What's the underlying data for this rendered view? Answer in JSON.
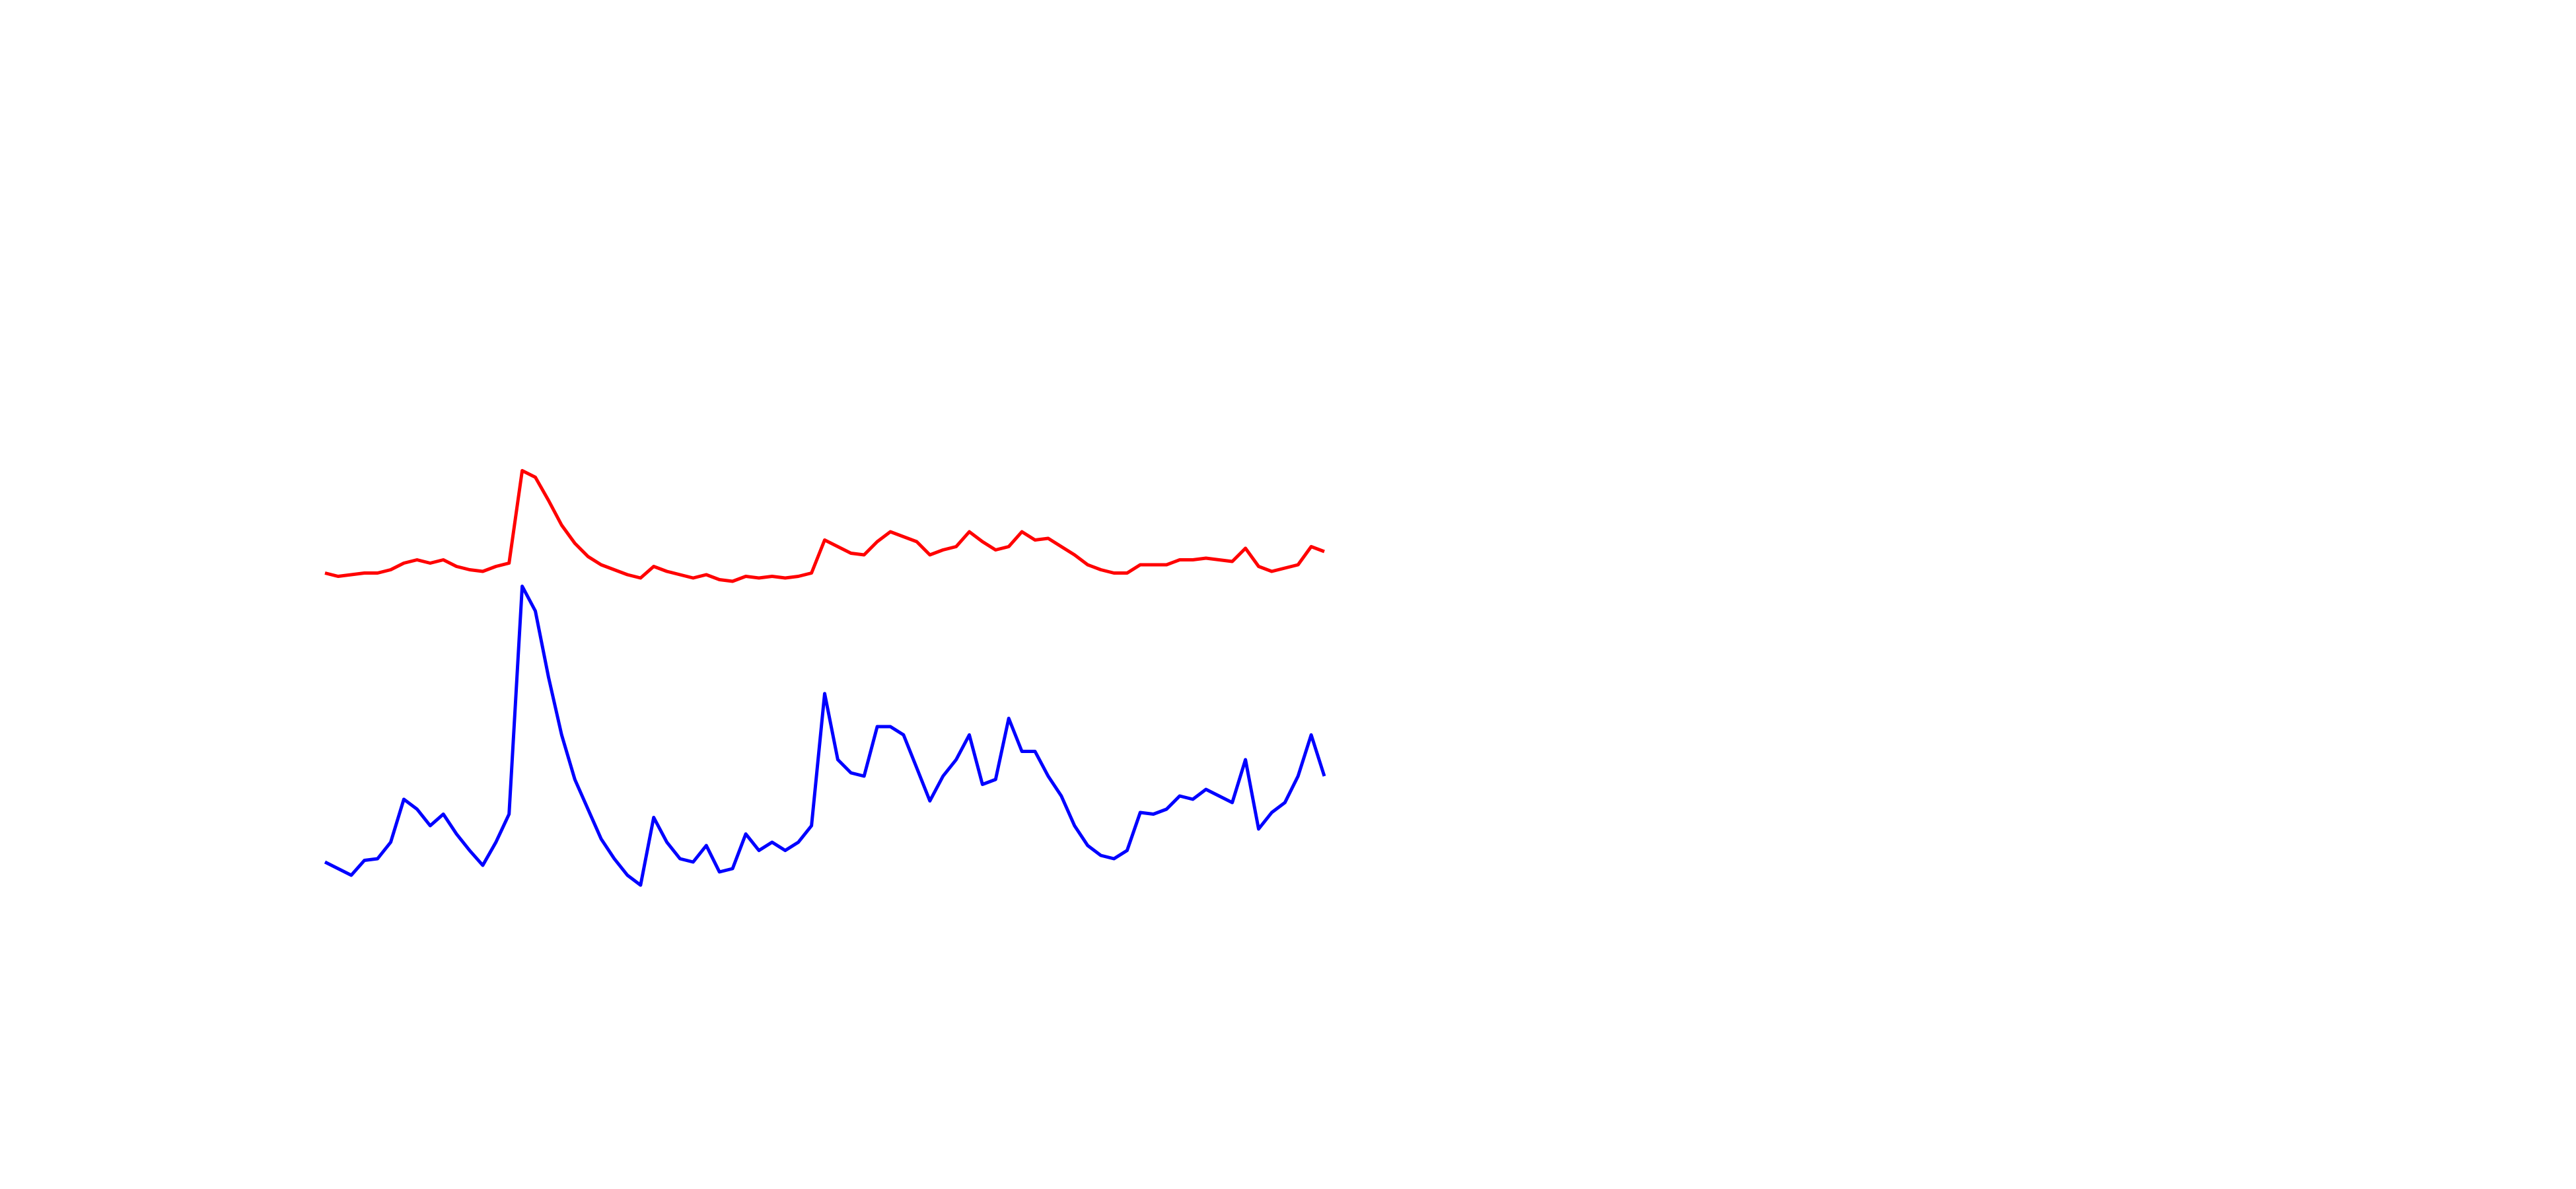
{
  "chart_data": {
    "type": "line",
    "ylim": [
      0,
      720
    ],
    "series": [
      {
        "color": "#ff0000",
        "values": [
          373,
          371,
          372,
          373,
          373,
          375,
          379,
          381,
          379,
          381,
          377,
          375,
          374,
          377,
          379,
          435,
          431,
          417,
          402,
          391,
          383,
          378,
          375,
          372,
          370,
          377,
          374,
          372,
          370,
          372,
          369,
          368,
          371,
          370,
          371,
          370,
          371,
          373,
          393,
          389,
          385,
          384,
          392,
          398,
          395,
          392,
          384,
          387,
          389,
          398,
          392,
          387,
          389,
          398,
          393,
          394,
          389,
          384,
          378,
          375,
          373,
          373,
          378,
          378,
          378,
          381,
          381,
          382,
          381,
          380,
          388,
          377,
          374,
          376,
          378,
          389,
          386
        ]
      },
      {
        "color": "#0000ff",
        "values": [
          198,
          194,
          190,
          199,
          200,
          210,
          236,
          230,
          220,
          227,
          215,
          205,
          196,
          210,
          227,
          365,
          350,
          310,
          275,
          248,
          230,
          212,
          200,
          190,
          184,
          225,
          210,
          200,
          198,
          208,
          192,
          194,
          215,
          205,
          210,
          205,
          210,
          220,
          300,
          260,
          252,
          250,
          280,
          280,
          275,
          255,
          235,
          250,
          260,
          275,
          245,
          248,
          285,
          265,
          265,
          250,
          238,
          220,
          208,
          202,
          200,
          205,
          228,
          227,
          230,
          238,
          236,
          242,
          238,
          234,
          260,
          218,
          228,
          234,
          250,
          275,
          250
        ]
      }
    ]
  }
}
